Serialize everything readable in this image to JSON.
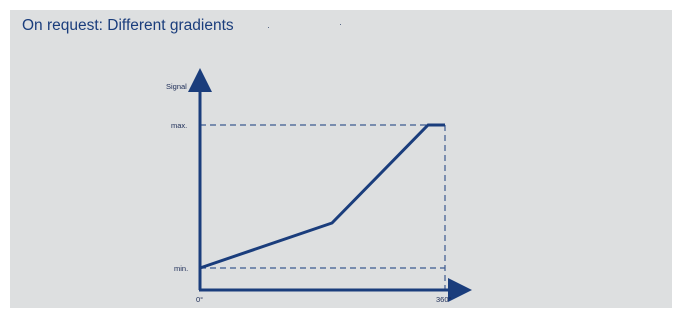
{
  "header": {
    "title": "On request: Different gradients"
  },
  "diagram": {
    "y_axis_label": "Signal",
    "y_max_label": "max.",
    "y_min_label": "min.",
    "x_start_label": "0°",
    "x_end_label": "360°",
    "curve": [
      {
        "angle_deg": 0,
        "signal": 0.0
      },
      {
        "angle_deg": 194,
        "signal": 0.31
      },
      {
        "angle_deg": 336,
        "signal": 1.0
      },
      {
        "angle_deg": 360,
        "signal": 1.0
      }
    ],
    "colors": {
      "line": "#1a3d7c",
      "axis": "#1a3d7c",
      "dashed_guide": "#3d5a8f",
      "panel_background": "#dddfe0"
    }
  }
}
